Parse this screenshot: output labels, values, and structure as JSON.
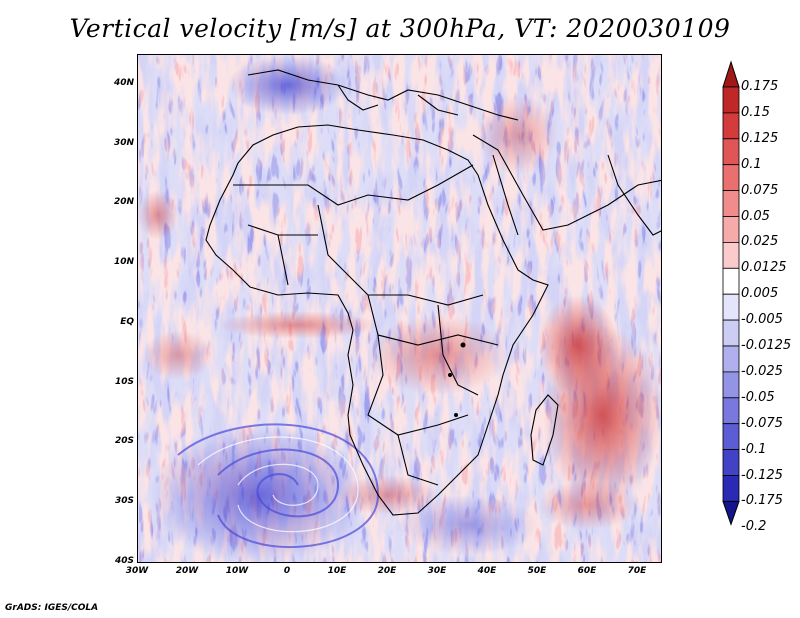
{
  "title": "Vertical velocity [m/s] at 300hPa, VT: 2020030109",
  "credit": "GrADS: IGES/COLA",
  "map": {
    "lon_range": [
      -30,
      75
    ],
    "lat_range": [
      -40,
      45
    ],
    "lat_labels": [
      "40N",
      "30N",
      "20N",
      "10N",
      "EQ",
      "10S",
      "20S",
      "30S",
      "40S"
    ],
    "lon_labels": [
      "30W",
      "20W",
      "10W",
      "0",
      "10E",
      "20E",
      "30E",
      "40E",
      "50E",
      "60E",
      "70E"
    ]
  },
  "colorbar": {
    "labels": [
      "0.175",
      "0.15",
      "0.125",
      "0.1",
      "0.075",
      "0.05",
      "0.025",
      "0.0125",
      "0.005",
      "-0.005",
      "-0.0125",
      "-0.025",
      "-0.05",
      "-0.075",
      "-0.1",
      "-0.125",
      "-0.175",
      "-0.2"
    ],
    "colors": [
      "#a01818",
      "#c02828",
      "#d43c3c",
      "#e05656",
      "#ea7070",
      "#f08c8c",
      "#f6aaaa",
      "#fbcaca",
      "#ffffff",
      "#e4e4fa",
      "#ccccf4",
      "#b0b0ee",
      "#9494e6",
      "#7878de",
      "#5c5cd4",
      "#4242c6",
      "#2a2ab4",
      "#14148c"
    ]
  }
}
